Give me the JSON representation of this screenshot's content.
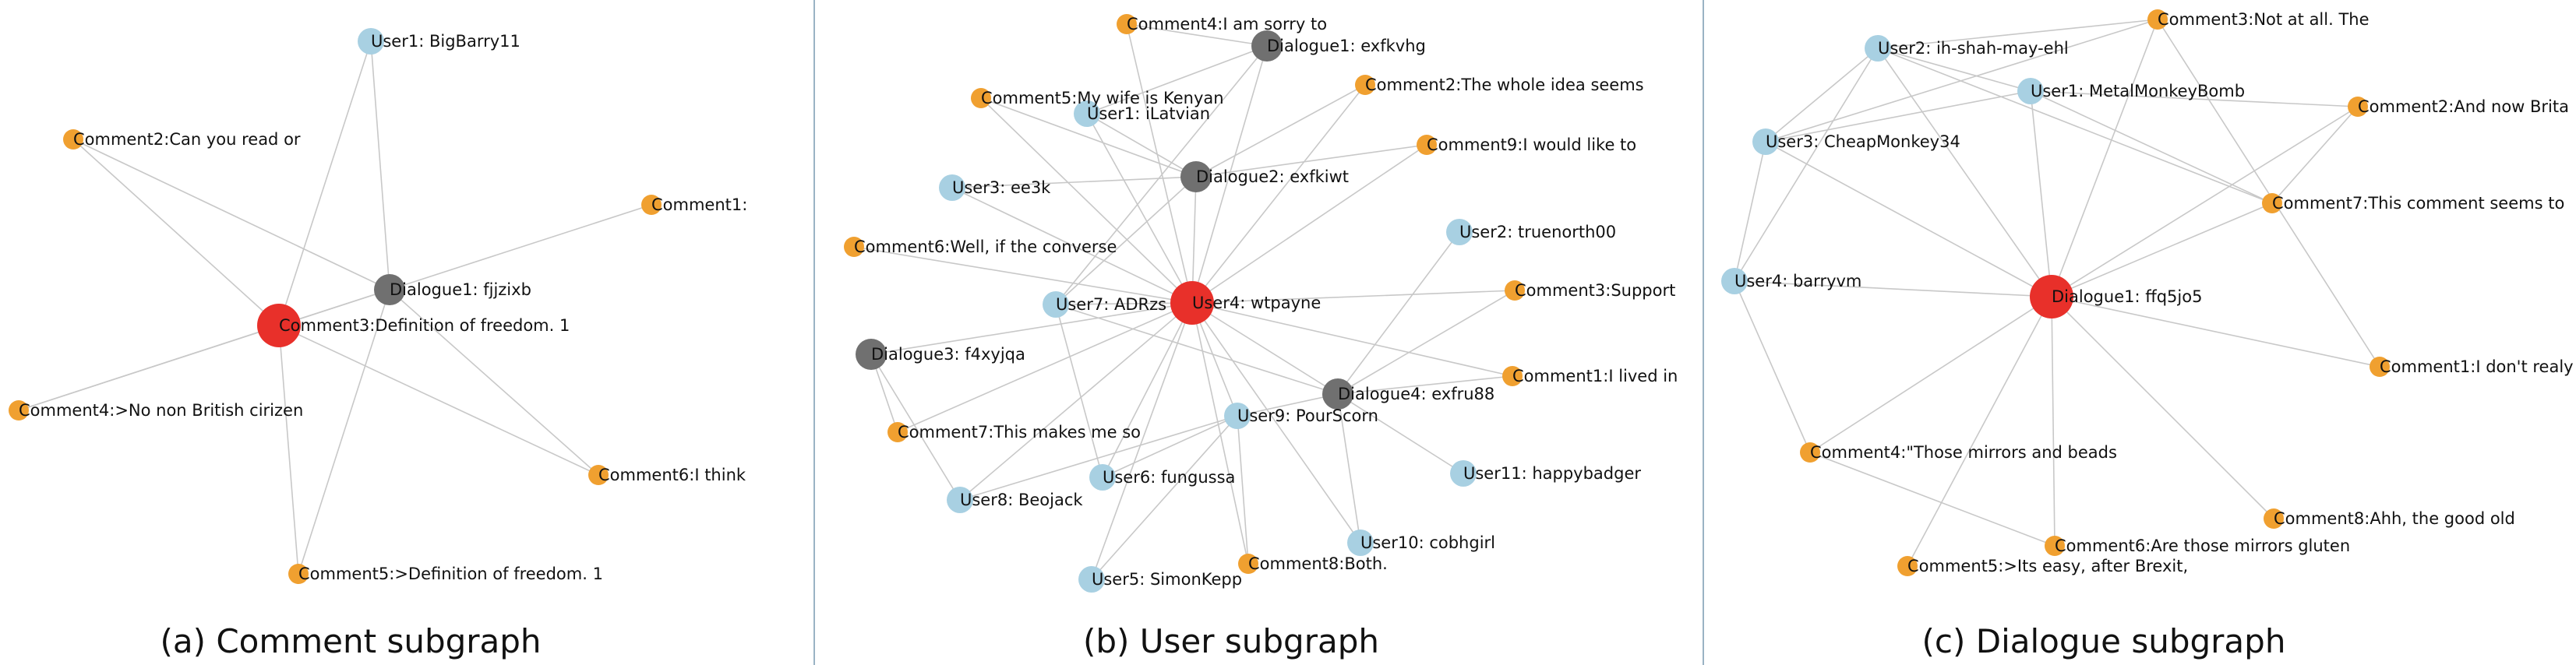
{
  "colors": {
    "comment": "#f0a030",
    "user": "#a8d0e2",
    "dialogue": "#707070",
    "center": "#e8302a",
    "edge": "#c8c8c8",
    "divider": "#9ab3c4"
  },
  "panels": [
    {
      "caption": "(a) Comment  subgraph",
      "nodes": [
        {
          "id": "c3",
          "type": "center",
          "label": "Comment3:Definition of freedom. 1"
        },
        {
          "id": "d1",
          "type": "dialogue",
          "label": "Dialogue1: fjjzixb"
        },
        {
          "id": "u1",
          "type": "user",
          "label": "User1: BigBarry11"
        },
        {
          "id": "c2",
          "type": "comment",
          "label": "Comment2:Can you read or"
        },
        {
          "id": "c1",
          "type": "comment",
          "label": "Comment1:"
        },
        {
          "id": "c4",
          "type": "comment",
          "label": "Comment4:>No non British cirizen"
        },
        {
          "id": "c6",
          "type": "comment",
          "label": "Comment6:I think"
        },
        {
          "id": "c5",
          "type": "comment",
          "label": "Comment5:>Definition of freedom. 1"
        }
      ],
      "edges": [
        [
          "c3",
          "d1"
        ],
        [
          "c3",
          "u1"
        ],
        [
          "c3",
          "c2"
        ],
        [
          "c3",
          "c4"
        ],
        [
          "c3",
          "c5"
        ],
        [
          "c3",
          "c6"
        ],
        [
          "d1",
          "u1"
        ],
        [
          "d1",
          "c2"
        ],
        [
          "d1",
          "c1"
        ],
        [
          "d1",
          "c4"
        ],
        [
          "d1",
          "c5"
        ],
        [
          "d1",
          "c6"
        ]
      ]
    },
    {
      "caption": "(b) User  subgraph",
      "nodes": [
        {
          "id": "u4",
          "type": "center",
          "label": "User4: wtpayne"
        },
        {
          "id": "c4",
          "type": "comment",
          "label": "Comment4:I am sorry to"
        },
        {
          "id": "d1",
          "type": "dialogue",
          "label": "Dialogue1: exfkvhg"
        },
        {
          "id": "c2",
          "type": "comment",
          "label": "Comment2:The whole idea seems"
        },
        {
          "id": "c5",
          "type": "comment",
          "label": "Comment5:My wife is Kenyan"
        },
        {
          "id": "u1",
          "type": "user",
          "label": "User1: iLatvian"
        },
        {
          "id": "c9",
          "type": "comment",
          "label": "Comment9:I would like to"
        },
        {
          "id": "d2",
          "type": "dialogue",
          "label": "Dialogue2: exfkiwt"
        },
        {
          "id": "u3",
          "type": "user",
          "label": "User3: ee3k"
        },
        {
          "id": "u2",
          "type": "user",
          "label": "User2: truenorth00"
        },
        {
          "id": "c6",
          "type": "comment",
          "label": "Comment6:Well, if the converse"
        },
        {
          "id": "u7",
          "type": "user",
          "label": "User7: ADRzs"
        },
        {
          "id": "c3",
          "type": "comment",
          "label": "Comment3:Support"
        },
        {
          "id": "d3",
          "type": "dialogue",
          "label": "Dialogue3: f4xyjqa"
        },
        {
          "id": "c1",
          "type": "comment",
          "label": "Comment1:I lived in"
        },
        {
          "id": "d4",
          "type": "dialogue",
          "label": "Dialogue4: exfru88"
        },
        {
          "id": "u9",
          "type": "user",
          "label": "User9: PourScorn"
        },
        {
          "id": "c7",
          "type": "comment",
          "label": "Comment7:This makes me so"
        },
        {
          "id": "u6",
          "type": "user",
          "label": "User6: fungussa"
        },
        {
          "id": "u11",
          "type": "user",
          "label": "User11: happybadger"
        },
        {
          "id": "u8",
          "type": "user",
          "label": "User8: Beojack"
        },
        {
          "id": "u10",
          "type": "user",
          "label": "User10: cobhgirl"
        },
        {
          "id": "c8",
          "type": "comment",
          "label": "Comment8:Both."
        },
        {
          "id": "u5",
          "type": "user",
          "label": "User5: SimonKepp"
        }
      ],
      "edges": [
        [
          "u4",
          "c4"
        ],
        [
          "u4",
          "d1"
        ],
        [
          "u4",
          "c2"
        ],
        [
          "u4",
          "c5"
        ],
        [
          "u4",
          "u1"
        ],
        [
          "u4",
          "c9"
        ],
        [
          "u4",
          "d2"
        ],
        [
          "u4",
          "u3"
        ],
        [
          "u4",
          "c6"
        ],
        [
          "u4",
          "u7"
        ],
        [
          "u4",
          "c3"
        ],
        [
          "u4",
          "d3"
        ],
        [
          "u4",
          "c1"
        ],
        [
          "u4",
          "d4"
        ],
        [
          "u4",
          "u9"
        ],
        [
          "u4",
          "c7"
        ],
        [
          "u4",
          "u6"
        ],
        [
          "u4",
          "u8"
        ],
        [
          "u4",
          "u10"
        ],
        [
          "u4",
          "c8"
        ],
        [
          "u4",
          "u5"
        ],
        [
          "d1",
          "c4"
        ],
        [
          "d1",
          "u1"
        ],
        [
          "d1",
          "u7"
        ],
        [
          "d2",
          "c5"
        ],
        [
          "d2",
          "u1"
        ],
        [
          "d2",
          "u3"
        ],
        [
          "d2",
          "c2"
        ],
        [
          "d2",
          "c9"
        ],
        [
          "d2",
          "u7"
        ],
        [
          "d3",
          "u8"
        ],
        [
          "d3",
          "c7"
        ],
        [
          "d4",
          "u2"
        ],
        [
          "d4",
          "c3"
        ],
        [
          "d4",
          "c1"
        ],
        [
          "d4",
          "u9"
        ],
        [
          "d4",
          "u11"
        ],
        [
          "d4",
          "u10"
        ],
        [
          "d4",
          "u7"
        ],
        [
          "u9",
          "u6"
        ],
        [
          "u9",
          "u8"
        ],
        [
          "u6",
          "u7"
        ],
        [
          "u5",
          "u9"
        ],
        [
          "c8",
          "u9"
        ]
      ]
    },
    {
      "caption": "(c) Dialogue  subgraph",
      "nodes": [
        {
          "id": "d1",
          "type": "center",
          "label": "Dialogue1: ffq5jo5"
        },
        {
          "id": "c3",
          "type": "comment",
          "label": "Comment3:Not at all. The"
        },
        {
          "id": "u2",
          "type": "user",
          "label": "User2: ih-shah-may-ehl"
        },
        {
          "id": "u1",
          "type": "user",
          "label": "User1: MetalMonkeyBomb"
        },
        {
          "id": "c2",
          "type": "comment",
          "label": "Comment2:And now Brita"
        },
        {
          "id": "u3",
          "type": "user",
          "label": "User3: CheapMonkey34"
        },
        {
          "id": "c7",
          "type": "comment",
          "label": "Comment7:This comment seems to"
        },
        {
          "id": "u4",
          "type": "user",
          "label": "User4: barryvm"
        },
        {
          "id": "c1",
          "type": "comment",
          "label": "Comment1:I don't realy"
        },
        {
          "id": "c4",
          "type": "comment",
          "label": "Comment4:\"Those mirrors and beads"
        },
        {
          "id": "c8",
          "type": "comment",
          "label": "Comment8:Ahh, the good old"
        },
        {
          "id": "c6",
          "type": "comment",
          "label": "Comment6:Are those mirrors gluten"
        },
        {
          "id": "c5",
          "type": "comment",
          "label": "Comment5:>Its easy, after Brexit,"
        }
      ],
      "edges": [
        [
          "d1",
          "c3"
        ],
        [
          "d1",
          "u2"
        ],
        [
          "d1",
          "u1"
        ],
        [
          "d1",
          "c2"
        ],
        [
          "d1",
          "u3"
        ],
        [
          "d1",
          "c7"
        ],
        [
          "d1",
          "u4"
        ],
        [
          "d1",
          "c1"
        ],
        [
          "d1",
          "c4"
        ],
        [
          "d1",
          "c8"
        ],
        [
          "d1",
          "c6"
        ],
        [
          "d1",
          "c5"
        ],
        [
          "u2",
          "u1"
        ],
        [
          "u2",
          "u3"
        ],
        [
          "u2",
          "u4"
        ],
        [
          "u2",
          "c3"
        ],
        [
          "u2",
          "c7"
        ],
        [
          "u1",
          "u3"
        ],
        [
          "u1",
          "c7"
        ],
        [
          "u1",
          "c2"
        ],
        [
          "u3",
          "c3"
        ],
        [
          "u3",
          "u4"
        ],
        [
          "u4",
          "c4"
        ],
        [
          "c3",
          "c1"
        ],
        [
          "c4",
          "c6"
        ],
        [
          "c2",
          "c7"
        ]
      ]
    }
  ]
}
